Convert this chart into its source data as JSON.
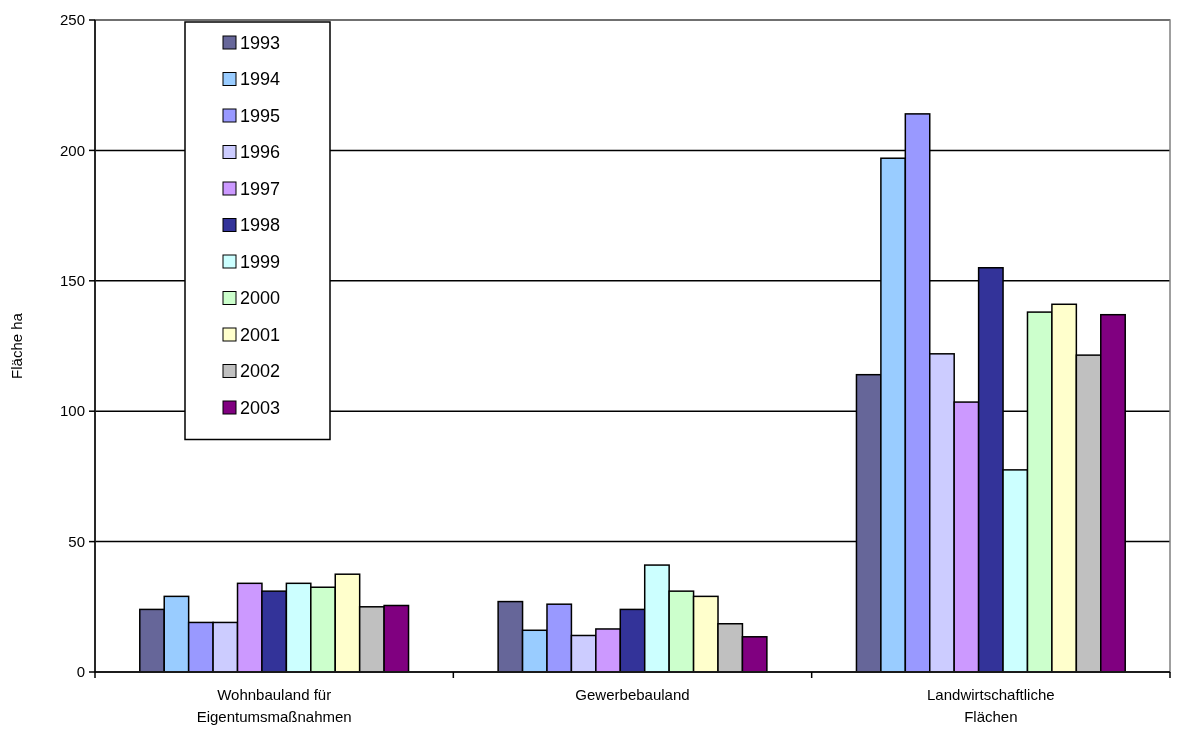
{
  "chart_data": {
    "type": "bar",
    "ylabel": "Fläche ha",
    "categories": [
      "Wohnbauland für Eigentumsmaßnahmen",
      "Gewerbebauland",
      "Landwirtschaftliche Flächen"
    ],
    "series": [
      {
        "name": "1993",
        "color": "#666699",
        "values": [
          24,
          27,
          114
        ]
      },
      {
        "name": "1994",
        "color": "#99ccff",
        "values": [
          29,
          16,
          197
        ]
      },
      {
        "name": "1995",
        "color": "#9999ff",
        "values": [
          19,
          26,
          214
        ]
      },
      {
        "name": "1996",
        "color": "#ccccff",
        "values": [
          19,
          14,
          122
        ]
      },
      {
        "name": "1997",
        "color": "#cc99ff",
        "values": [
          34,
          16.5,
          103.5
        ]
      },
      {
        "name": "1998",
        "color": "#333399",
        "values": [
          31,
          24,
          155
        ]
      },
      {
        "name": "1999",
        "color": "#ccffff",
        "values": [
          34,
          41,
          77.5
        ]
      },
      {
        "name": "2000",
        "color": "#ccffcc",
        "values": [
          32.5,
          31,
          138
        ]
      },
      {
        "name": "2001",
        "color": "#ffffcc",
        "values": [
          37.5,
          29,
          141
        ]
      },
      {
        "name": "2002",
        "color": "#c0c0c0",
        "values": [
          25,
          18.5,
          121.5
        ]
      },
      {
        "name": "2003",
        "color": "#800080",
        "values": [
          25.5,
          13.5,
          137
        ]
      }
    ],
    "ylim": [
      0,
      250
    ],
    "yticks": [
      0,
      50,
      100,
      150,
      200,
      250
    ],
    "grid": "y",
    "legend": "top left"
  }
}
